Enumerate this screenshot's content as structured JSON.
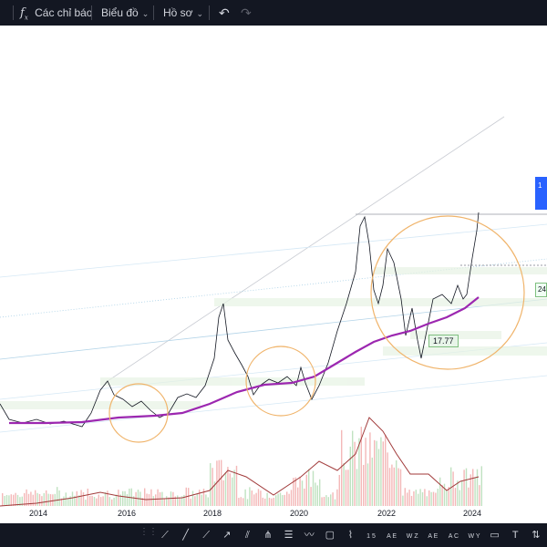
{
  "toolbar": {
    "indicators_label": "Các chỉ báo",
    "chart_label": "Biểu đồ",
    "profile_label": "Hồ sơ",
    "indicators_icon": "fx-icon",
    "undo_icon": "undo-icon",
    "redo_icon": "redo-icon"
  },
  "chart": {
    "annotation_value": "17.77",
    "right_tag_text": "1",
    "right_callout_text": "24",
    "ma_color": "#9c27b0",
    "circle_color": "#f0b46b",
    "x_ticks": [
      "2014",
      "2016",
      "2018",
      "2020",
      "2022",
      "2024"
    ]
  },
  "drawing_tools": [
    {
      "name": "trend-line-icon",
      "label": ""
    },
    {
      "name": "ray-icon",
      "label": ""
    },
    {
      "name": "extended-line-icon",
      "label": ""
    },
    {
      "name": "info-line-icon",
      "label": ""
    },
    {
      "name": "parallel-channel-icon",
      "label": ""
    },
    {
      "name": "pitchfork-icon",
      "label": ""
    },
    {
      "name": "fib-retracement-icon",
      "label": ""
    },
    {
      "name": "brush-icon",
      "label": ""
    },
    {
      "name": "rectangle-icon",
      "label": ""
    },
    {
      "name": "path-icon",
      "label": ""
    },
    {
      "name": "pattern-15-icon",
      "label": "1 5"
    },
    {
      "name": "pattern-ae-icon",
      "label": "A E"
    },
    {
      "name": "pattern-wz-icon",
      "label": "W Z"
    },
    {
      "name": "pattern-ae2-icon",
      "label": "A E"
    },
    {
      "name": "pattern-ac-icon",
      "label": "A C"
    },
    {
      "name": "pattern-wy-icon",
      "label": "W Y"
    },
    {
      "name": "comment-icon",
      "label": ""
    },
    {
      "name": "text-icon",
      "label": "T"
    },
    {
      "name": "long-position-icon",
      "label": ""
    }
  ]
}
